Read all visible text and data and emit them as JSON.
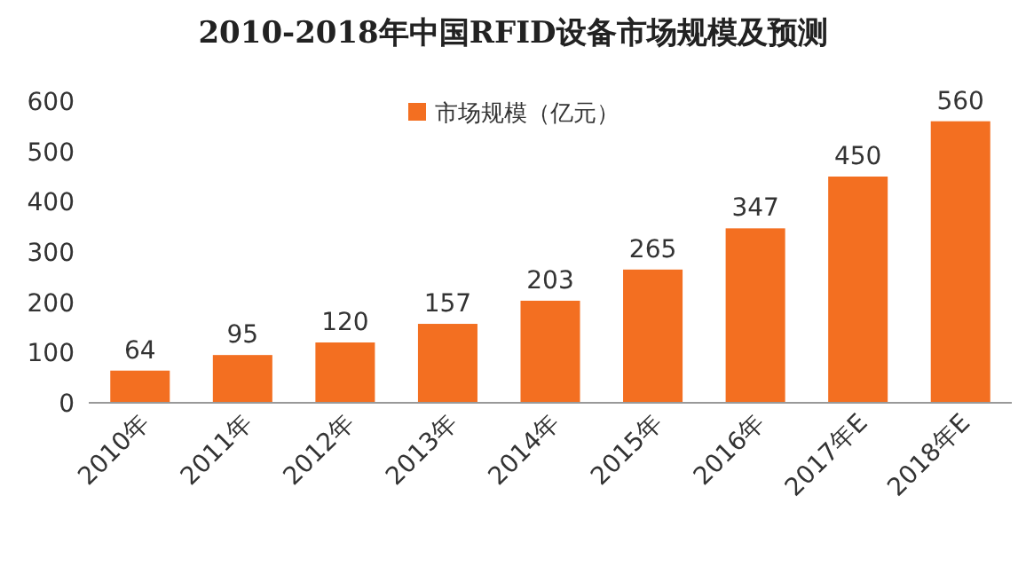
{
  "chart_data": {
    "type": "bar",
    "title": "2010-2018年中国RFID设备市场规模及预测",
    "categories": [
      "2010年",
      "2011年",
      "2012年",
      "2013年",
      "2014年",
      "2015年",
      "2016年",
      "2017年E",
      "2018年E"
    ],
    "series": [
      {
        "name": "市场规模（亿元）",
        "color": "#f36f21",
        "values": [
          64,
          95,
          120,
          157,
          203,
          265,
          347,
          450,
          560
        ]
      }
    ],
    "ylim": [
      0,
      600
    ],
    "yticks": [
      0,
      100,
      200,
      300,
      400,
      500,
      600
    ],
    "data_labels": true,
    "legend": "top"
  }
}
